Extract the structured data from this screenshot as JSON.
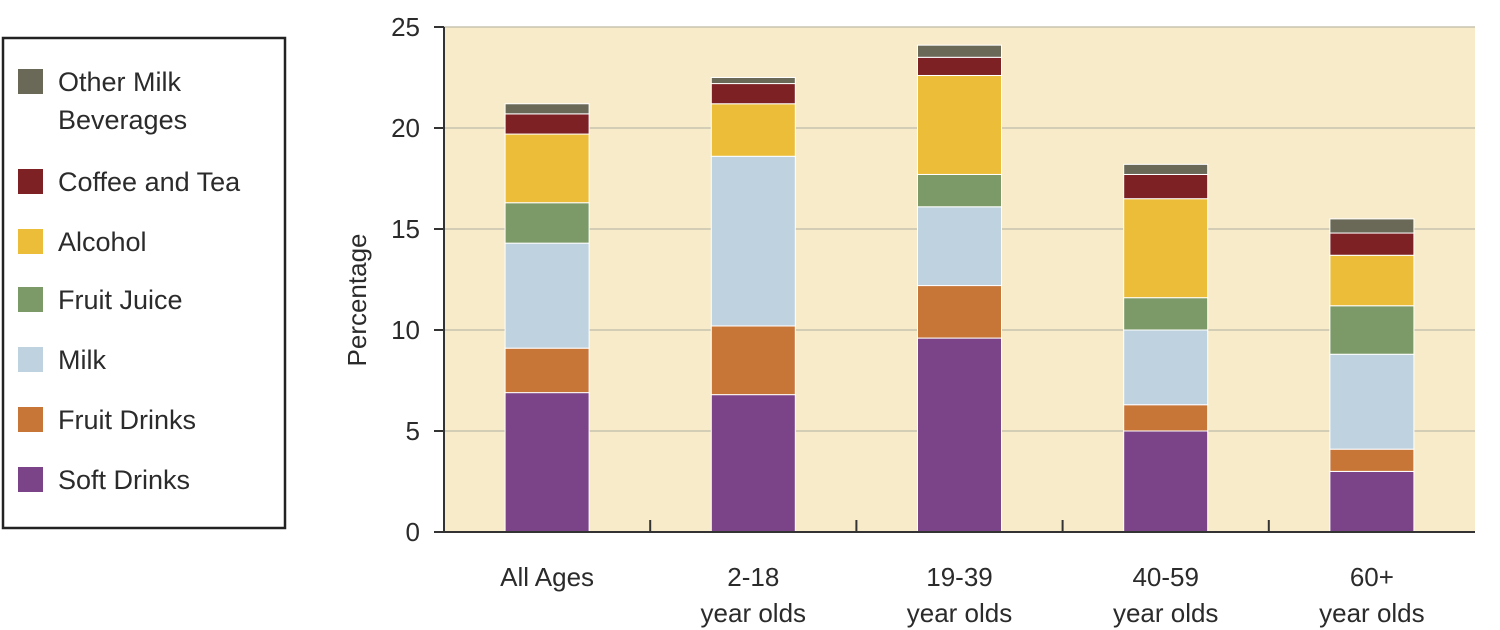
{
  "chart_data": {
    "type": "bar",
    "stacked": true,
    "ylabel": "Percentage",
    "xlabel": "",
    "ylim": [
      0,
      25
    ],
    "yticks": [
      0,
      5,
      10,
      15,
      20,
      25
    ],
    "grid": true,
    "legend_position": "left",
    "plot_background": "#f7ebc9",
    "categories": [
      [
        "All Ages"
      ],
      [
        "2-18",
        "year olds"
      ],
      [
        "19-39",
        "year olds"
      ],
      [
        "40-59",
        "year olds"
      ],
      [
        "60+",
        "year olds"
      ]
    ],
    "series": [
      {
        "name": "Soft Drinks",
        "color": "#7b4488",
        "values": [
          6.9,
          6.8,
          9.6,
          5.0,
          3.0
        ]
      },
      {
        "name": "Fruit Drinks",
        "color": "#c87538",
        "values": [
          2.2,
          3.4,
          2.6,
          1.3,
          1.1
        ]
      },
      {
        "name": "Milk",
        "color": "#bed3df",
        "values": [
          5.2,
          8.4,
          3.9,
          3.7,
          4.7
        ]
      },
      {
        "name": "Fruit Juice",
        "color": "#7b9a67",
        "values": [
          2.0,
          0.0,
          1.6,
          1.6,
          2.4
        ]
      },
      {
        "name": "Alcohol",
        "color": "#ebbd39",
        "values": [
          3.4,
          2.6,
          4.9,
          4.9,
          2.5
        ]
      },
      {
        "name": "Coffee and Tea",
        "color": "#7d2124",
        "values": [
          1.0,
          1.0,
          0.9,
          1.2,
          1.1
        ]
      },
      {
        "name": "Other Milk Beverages",
        "color": "#6a6958",
        "values": [
          0.5,
          0.3,
          0.6,
          0.5,
          0.7
        ]
      }
    ],
    "legend_lines": [
      [
        "Other Milk",
        "Beverages"
      ],
      [
        "Coffee and Tea"
      ],
      [
        "Alcohol"
      ],
      [
        "Fruit Juice"
      ],
      [
        "Milk"
      ],
      [
        "Fruit Drinks"
      ],
      [
        "Soft Drinks"
      ]
    ]
  }
}
